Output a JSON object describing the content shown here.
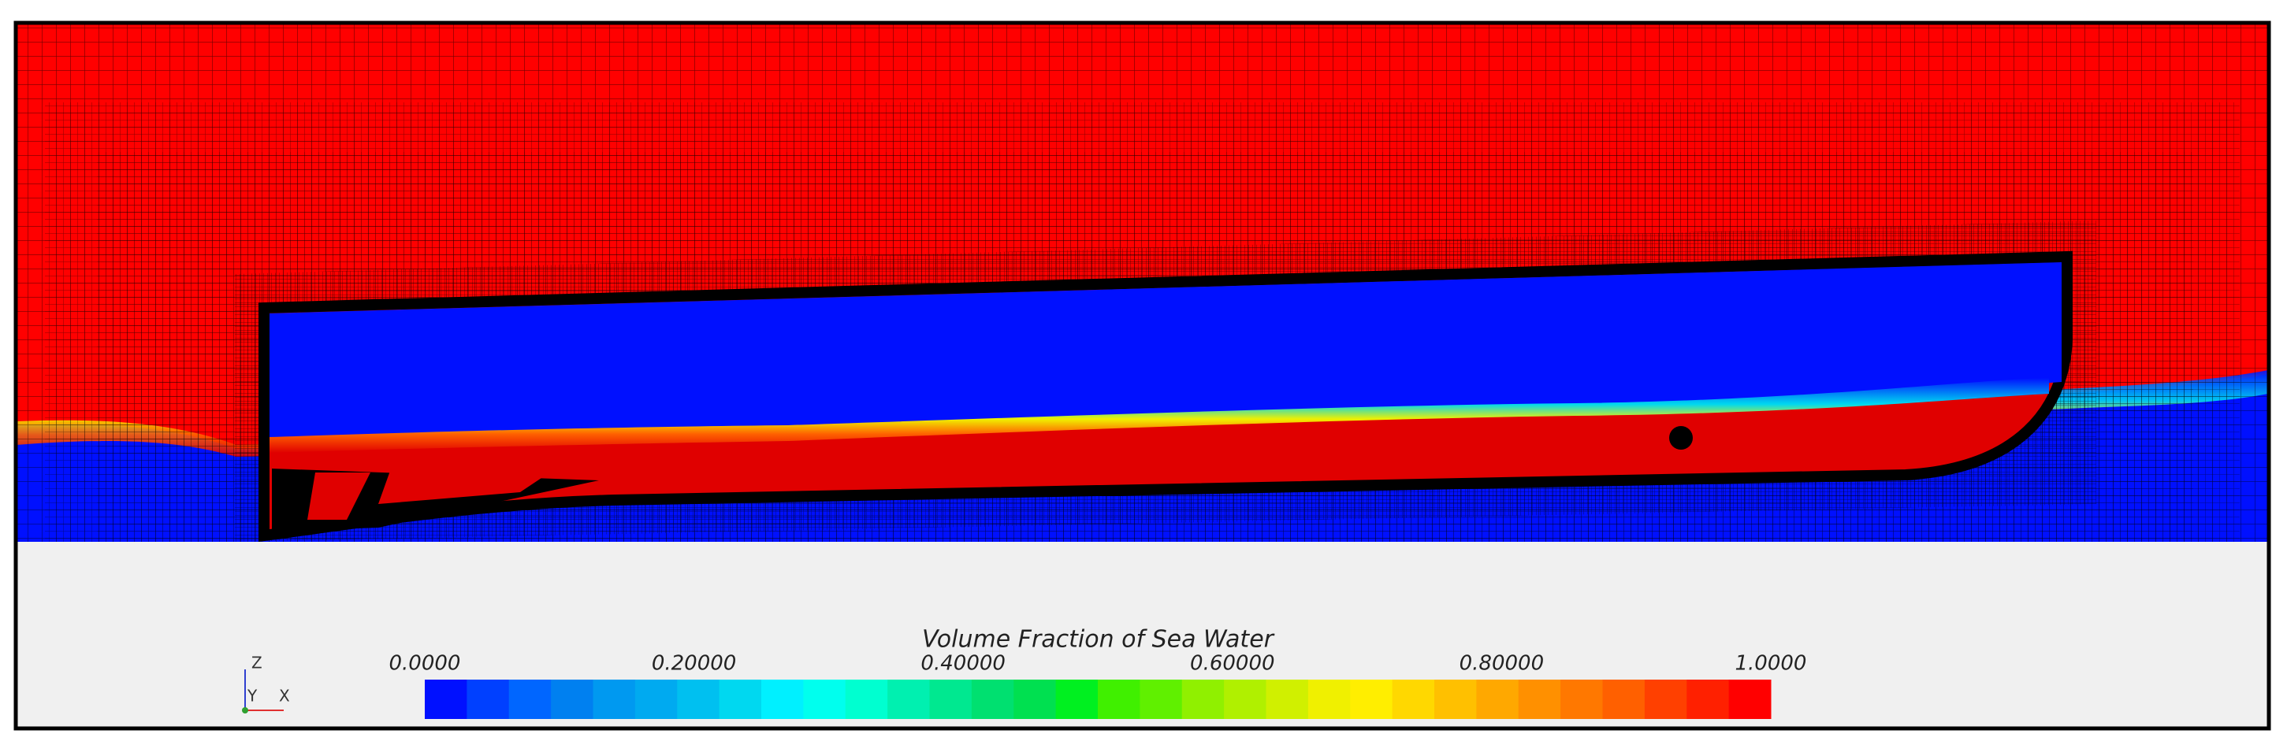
{
  "colorbar": {
    "title": "Volume Fraction of Sea Water",
    "lim": [
      0,
      1
    ],
    "ticks": [
      {
        "value": 0,
        "label": "0.0000"
      },
      {
        "value": 0.2,
        "label": "0.20000"
      },
      {
        "value": 0.4,
        "label": "0.40000"
      },
      {
        "value": 0.6,
        "label": "0.60000"
      },
      {
        "value": 0.8,
        "label": "0.80000"
      },
      {
        "value": 1,
        "label": "1.0000"
      }
    ],
    "colors": [
      "#0010ff",
      "#0040ff",
      "#0066ff",
      "#0080f0",
      "#0099f0",
      "#00aaf0",
      "#00c0f0",
      "#00d8f0",
      "#00f0ff",
      "#00ffee",
      "#00ffd0",
      "#00f0b0",
      "#00e890",
      "#00e070",
      "#00e050",
      "#00f020",
      "#40f000",
      "#60f000",
      "#90f000",
      "#b0f000",
      "#d0f000",
      "#f0f000",
      "#ffee00",
      "#ffd800",
      "#ffc000",
      "#ffa800",
      "#ff9000",
      "#ff7800",
      "#ff6000",
      "#ff4000",
      "#ff2000",
      "#ff0000"
    ]
  },
  "axes_triad": {
    "z": "Z",
    "y": "Y",
    "x": "X"
  }
}
